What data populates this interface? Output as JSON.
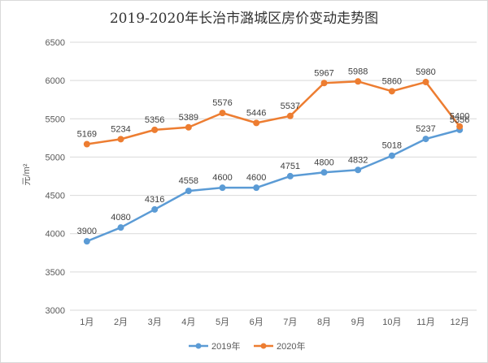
{
  "chart_data": {
    "type": "line",
    "title": "2019-2020年长治市潞城区房价变动走势图",
    "ylabel": "元/m²",
    "xlabel": "",
    "categories": [
      "1月",
      "2月",
      "3月",
      "4月",
      "5月",
      "6月",
      "7月",
      "8月",
      "9月",
      "10月",
      "11月",
      "12月"
    ],
    "ylim": [
      3000,
      6500
    ],
    "yticks": [
      3000,
      3500,
      4000,
      4500,
      5000,
      5500,
      6000,
      6500
    ],
    "grid": true,
    "legend_position": "bottom",
    "series": [
      {
        "name": "2019年",
        "color": "#5b9bd5",
        "values": [
          3900,
          4080,
          4316,
          4558,
          4600,
          4600,
          4751,
          4800,
          4832,
          5018,
          5237,
          5356
        ]
      },
      {
        "name": "2020年",
        "color": "#ed7d31",
        "values": [
          5169,
          5234,
          5356,
          5389,
          5576,
          5446,
          5537,
          5967,
          5988,
          5860,
          5980,
          5400
        ]
      }
    ]
  }
}
